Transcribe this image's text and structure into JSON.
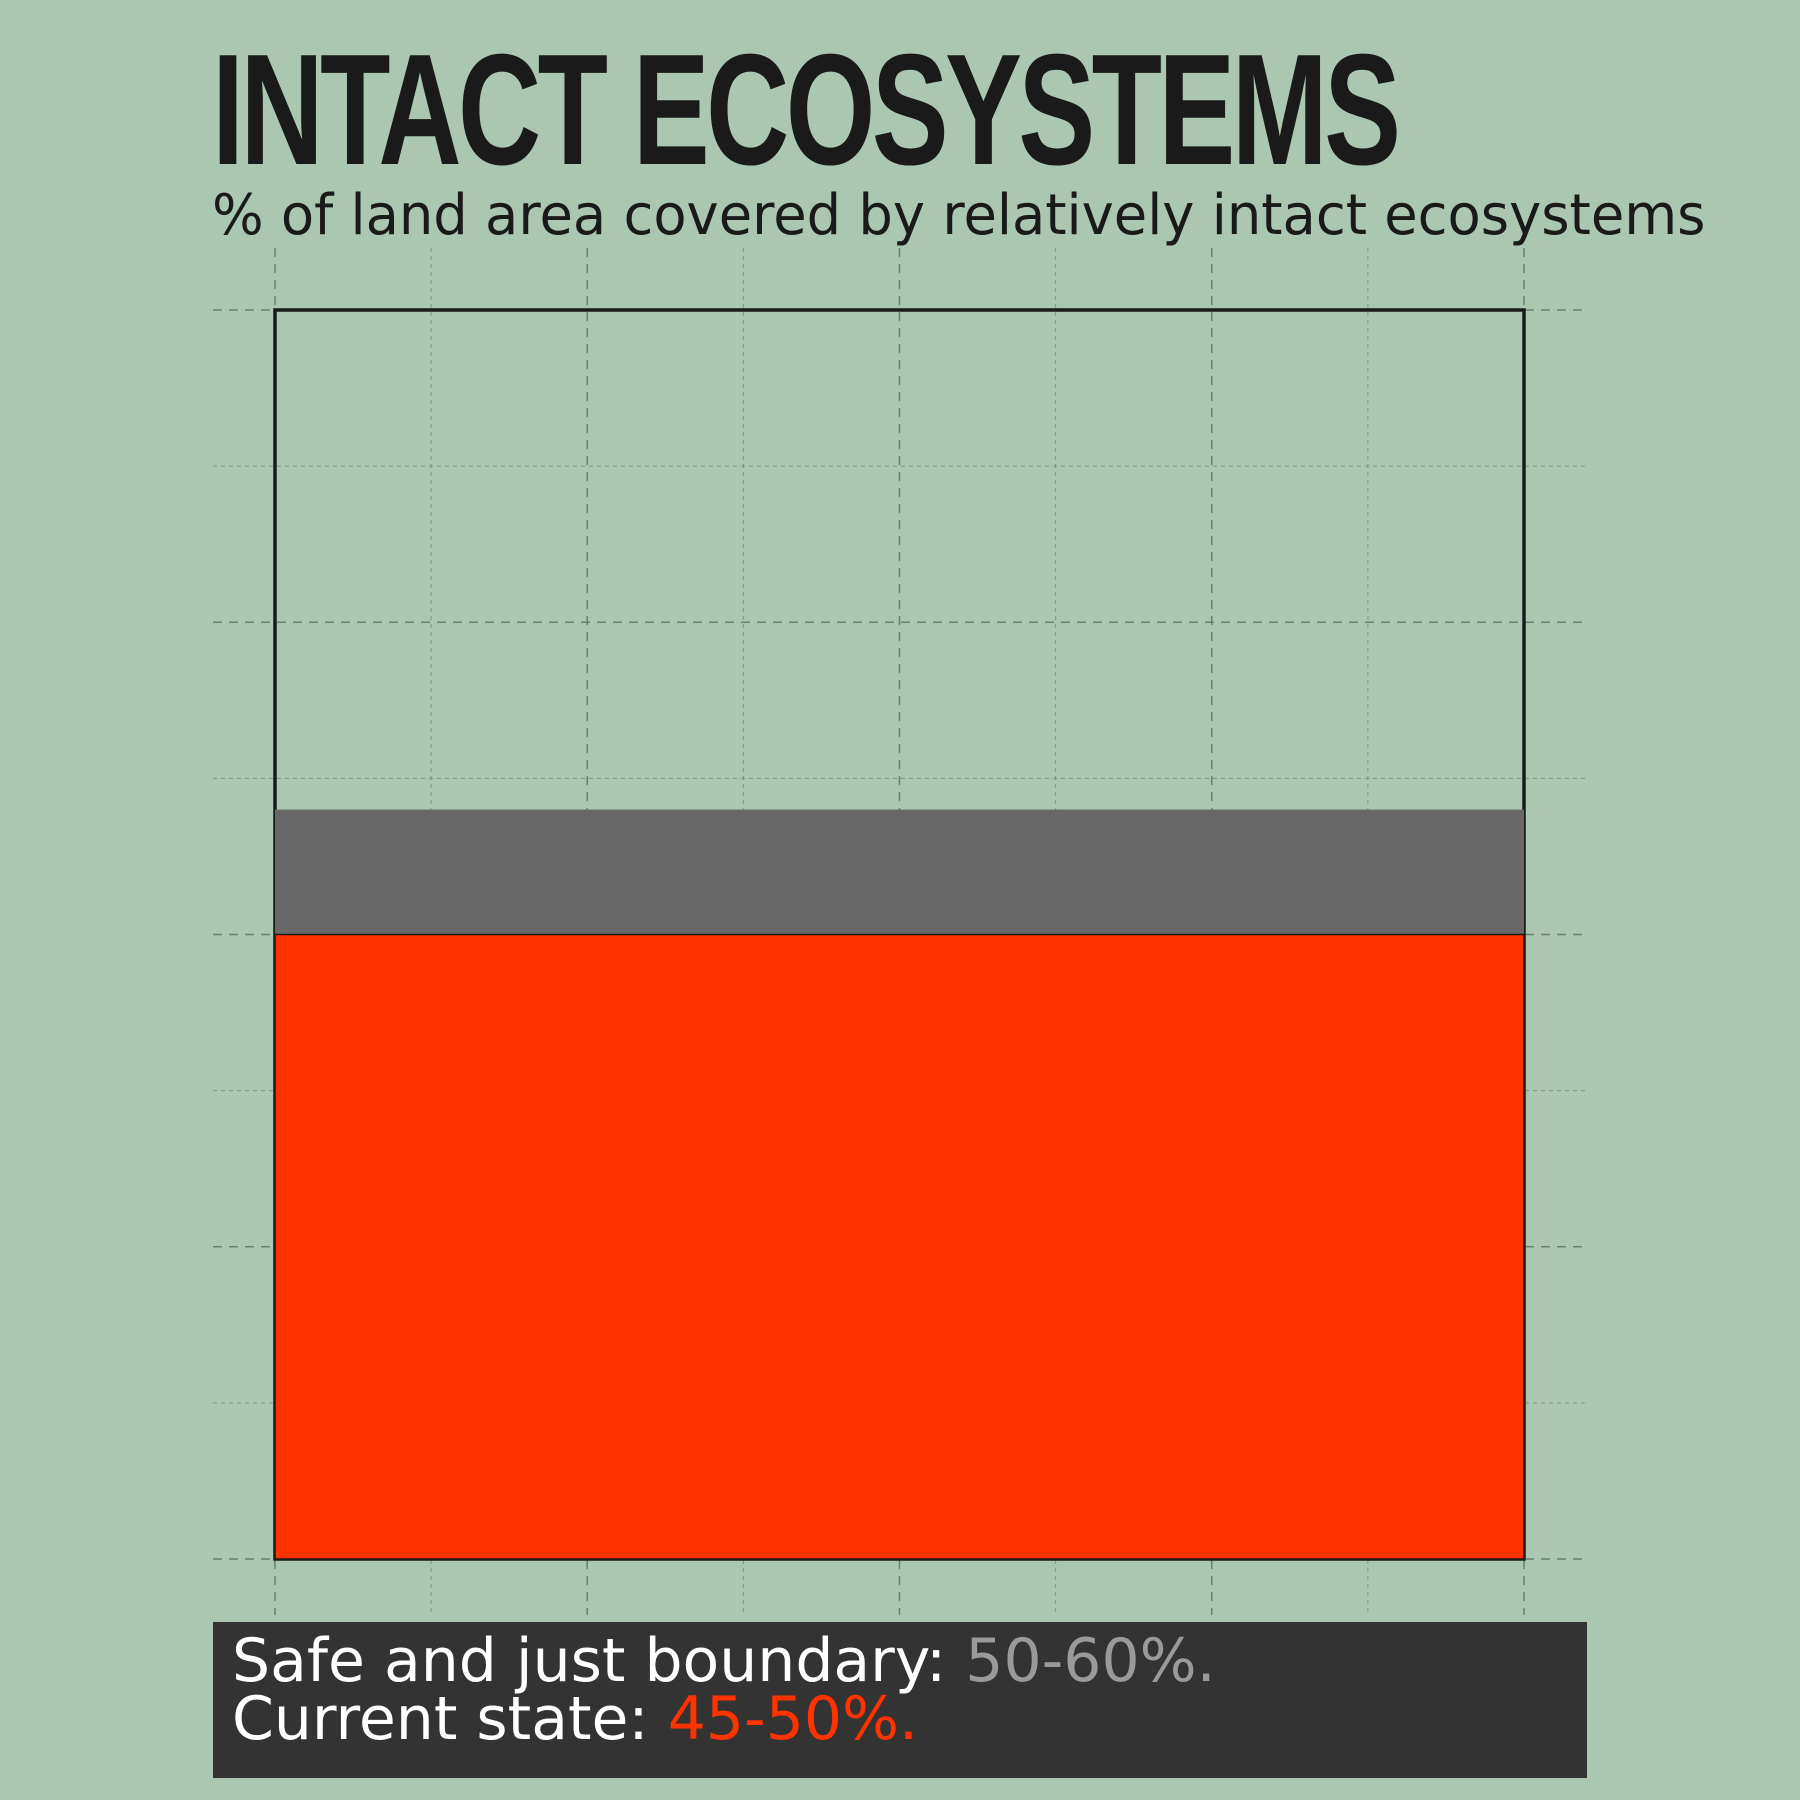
{
  "title": "INTACT ECOSYSTEMS",
  "subtitle": "% of land area covered by relatively intact ecosystems",
  "footer": {
    "boundary_label": "Safe and just boundary: ",
    "boundary_value": "50-60%.",
    "current_label": "Current state: ",
    "current_value": "45-50%."
  },
  "colors": {
    "background": "#abc7b2",
    "boundary_band": "#686868",
    "current_state": "#ff3300",
    "footer_bg": "#333333",
    "boundary_text": "#9a9a9a",
    "current_text": "#ff3300"
  },
  "chart_data": {
    "type": "bar",
    "title": "INTACT ECOSYSTEMS",
    "subtitle": "% of land area covered by relatively intact ecosystems",
    "unit": "%",
    "ylim": [
      0,
      100
    ],
    "grid": true,
    "values": {
      "total": 100,
      "current_state": 50,
      "safe_boundary_range": [
        50,
        60
      ]
    }
  }
}
